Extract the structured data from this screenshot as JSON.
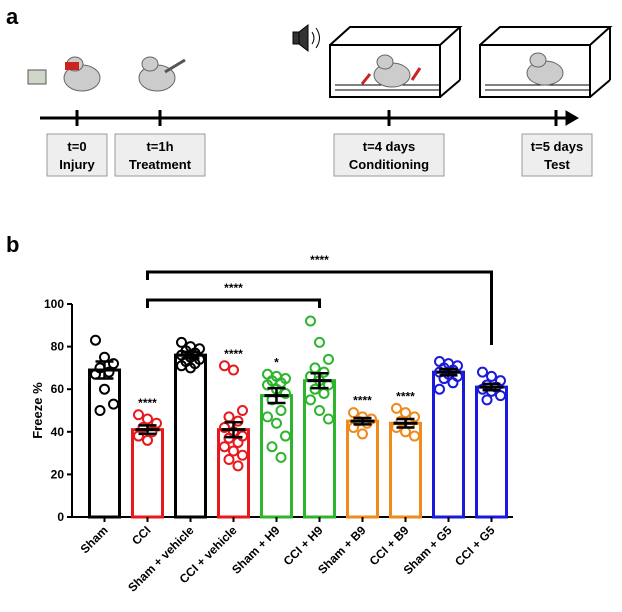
{
  "timeline": {
    "label": "a",
    "events": [
      {
        "time": "t=0",
        "name": "Injury"
      },
      {
        "time": "t=1h",
        "name": "Treatment"
      },
      {
        "time": "t=4 days",
        "name": "Conditioning"
      },
      {
        "time": "t=5 days",
        "name": "Test"
      }
    ]
  },
  "chart_data": {
    "type": "bar",
    "panel_label": "b",
    "ylabel": "Freeze %",
    "categories": [
      "Sham",
      "CCI",
      "Sham + vehicle",
      "CCI + vehicle",
      "Sham + H9",
      "CCI + H9",
      "Sham + B9",
      "CCI + B9",
      "Sham + G5",
      "CCI + G5"
    ],
    "values": [
      69,
      41,
      76,
      41,
      57,
      64,
      45,
      44,
      68,
      61
    ],
    "errors": [
      4,
      2,
      1.5,
      3.5,
      3.5,
      3.5,
      1.5,
      2,
      1.5,
      1.5
    ],
    "colors": [
      "#000000",
      "#e8191e",
      "#000000",
      "#e8191e",
      "#2db52d",
      "#2db52d",
      "#f08a1c",
      "#f08a1c",
      "#1a1adc",
      "#1a1adc"
    ],
    "points": [
      [
        83,
        75,
        72,
        70,
        68,
        67,
        60,
        53,
        50
      ],
      [
        48,
        46,
        44,
        42,
        40,
        38,
        36
      ],
      [
        82,
        80,
        79,
        78,
        77,
        76,
        75,
        74,
        73,
        72,
        71,
        70
      ],
      [
        71,
        69,
        50,
        47,
        45,
        42,
        40,
        38,
        37,
        35,
        33,
        31,
        29,
        27,
        24
      ],
      [
        67,
        66,
        65,
        64,
        63,
        62,
        60,
        58,
        55,
        50,
        47,
        44,
        38,
        33,
        28
      ],
      [
        92,
        82,
        74,
        70,
        68,
        66,
        64,
        62,
        60,
        58,
        55,
        50,
        46
      ],
      [
        49,
        47,
        46,
        45,
        44,
        42,
        39
      ],
      [
        51,
        49,
        47,
        45,
        44,
        42,
        40,
        38
      ],
      [
        73,
        72,
        71,
        70,
        69,
        68,
        67,
        66,
        65,
        63,
        60
      ],
      [
        68,
        66,
        64,
        62,
        61,
        60,
        59,
        57,
        55
      ]
    ],
    "annotations": [
      null,
      "****",
      null,
      "****",
      "*",
      null,
      "****",
      "****",
      null,
      null
    ],
    "brackets": [
      {
        "from": 1,
        "to": 5,
        "label": "****"
      },
      {
        "from": 1,
        "to": 9,
        "label": "****"
      }
    ],
    "ylim": [
      0,
      100
    ],
    "yticks": [
      0,
      20,
      40,
      60,
      80,
      100
    ]
  }
}
